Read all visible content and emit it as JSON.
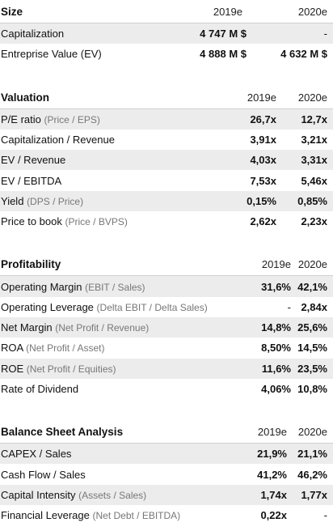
{
  "size": {
    "title": "Size",
    "cols": [
      "2019e",
      "2020e"
    ],
    "rows": [
      {
        "label": "Capitalization",
        "sub": "",
        "v1": "4 747 M $",
        "v2": "-"
      },
      {
        "label": "Entreprise Value (EV)",
        "sub": "",
        "v1": "4 888 M $",
        "v2": "4 632 M $"
      }
    ]
  },
  "valuation": {
    "title": "Valuation",
    "cols": [
      "2019e",
      "2020e"
    ],
    "rows": [
      {
        "label": "P/E ratio",
        "sub": "(Price / EPS)",
        "v1": "26,7x",
        "v2": "12,7x"
      },
      {
        "label": "Capitalization / Revenue",
        "sub": "",
        "v1": "3,91x",
        "v2": "3,21x"
      },
      {
        "label": "EV / Revenue",
        "sub": "",
        "v1": "4,03x",
        "v2": "3,31x"
      },
      {
        "label": "EV / EBITDA",
        "sub": "",
        "v1": "7,53x",
        "v2": "5,46x"
      },
      {
        "label": "Yield",
        "sub": "(DPS / Price)",
        "v1": "0,15%",
        "v2": "0,85%"
      },
      {
        "label": "Price to book",
        "sub": "(Price / BVPS)",
        "v1": "2,62x",
        "v2": "2,23x"
      }
    ]
  },
  "profitability": {
    "title": "Profitability",
    "cols": [
      "2019e",
      "2020e"
    ],
    "rows": [
      {
        "label": "Operating Margin",
        "sub": "(EBIT / Sales)",
        "v1": "31,6%",
        "v2": "42,1%"
      },
      {
        "label": "Operating Leverage",
        "sub": "(Delta EBIT / Delta Sales)",
        "v1": "-",
        "v2": "2,84x"
      },
      {
        "label": "Net Margin",
        "sub": "(Net Profit / Revenue)",
        "v1": "14,8%",
        "v2": "25,6%"
      },
      {
        "label": "ROA",
        "sub": "(Net Profit / Asset)",
        "v1": "8,50%",
        "v2": "14,5%"
      },
      {
        "label": "ROE",
        "sub": "(Net Profit / Equities)",
        "v1": "11,6%",
        "v2": "23,5%"
      },
      {
        "label": "Rate of Dividend",
        "sub": "",
        "v1": "4,06%",
        "v2": "10,8%"
      }
    ]
  },
  "balance": {
    "title": "Balance Sheet Analysis",
    "cols": [
      "2019e",
      "2020e"
    ],
    "rows": [
      {
        "label": "CAPEX / Sales",
        "sub": "",
        "v1": "21,9%",
        "v2": "21,1%"
      },
      {
        "label": "Cash Flow / Sales",
        "sub": "",
        "v1": "41,2%",
        "v2": "46,2%"
      },
      {
        "label": "Capital Intensity",
        "sub": "(Assets / Sales)",
        "v1": "1,74x",
        "v2": "1,77x"
      },
      {
        "label": "Financial Leverage",
        "sub": "(Net Debt / EBITDA)",
        "v1": "0,22x",
        "v2": "-"
      }
    ]
  }
}
